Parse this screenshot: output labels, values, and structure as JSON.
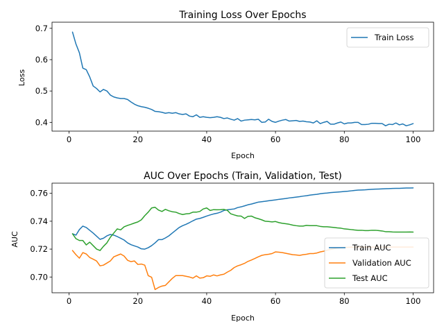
{
  "chart_data": [
    {
      "type": "line",
      "title": "Training Loss Over Epochs",
      "xlabel": "Epoch",
      "ylabel": "Loss",
      "xlim": [
        -4.95,
        105.95
      ],
      "ylim": [
        0.372,
        0.7195
      ],
      "xticks": [
        0,
        20,
        40,
        60,
        80,
        100
      ],
      "yticks": [
        0.4,
        0.5,
        0.6,
        0.7
      ],
      "grid": false,
      "legend_position": "top-right",
      "series": [
        {
          "name": "Train Loss",
          "color": "#1f77b4",
          "x": [
            1,
            2,
            3,
            4,
            5,
            6,
            7,
            8,
            9,
            10,
            11,
            12,
            13,
            14,
            15,
            16,
            17,
            18,
            19,
            20,
            21,
            22,
            23,
            24,
            25,
            26,
            27,
            28,
            29,
            30,
            31,
            32,
            33,
            34,
            35,
            36,
            37,
            38,
            39,
            40,
            41,
            42,
            43,
            44,
            45,
            46,
            47,
            48,
            49,
            50,
            51,
            52,
            53,
            54,
            55,
            56,
            57,
            58,
            59,
            60,
            61,
            62,
            63,
            64,
            65,
            66,
            67,
            68,
            69,
            70,
            71,
            72,
            73,
            74,
            75,
            76,
            77,
            78,
            79,
            80,
            81,
            82,
            83,
            84,
            85,
            86,
            87,
            88,
            89,
            90,
            91,
            92,
            93,
            94,
            95,
            96,
            97,
            98,
            99,
            100
          ],
          "y": [
            0.688,
            0.65,
            0.622,
            0.573,
            0.568,
            0.545,
            0.516,
            0.508,
            0.497,
            0.505,
            0.5,
            0.487,
            0.481,
            0.478,
            0.476,
            0.476,
            0.473,
            0.465,
            0.458,
            0.453,
            0.45,
            0.448,
            0.445,
            0.441,
            0.435,
            0.434,
            0.432,
            0.429,
            0.431,
            0.429,
            0.431,
            0.427,
            0.425,
            0.427,
            0.42,
            0.418,
            0.424,
            0.416,
            0.418,
            0.416,
            0.415,
            0.416,
            0.418,
            0.416,
            0.412,
            0.414,
            0.41,
            0.407,
            0.412,
            0.404,
            0.407,
            0.408,
            0.409,
            0.408,
            0.41,
            0.4,
            0.401,
            0.41,
            0.403,
            0.4,
            0.404,
            0.407,
            0.409,
            0.404,
            0.405,
            0.406,
            0.403,
            0.404,
            0.402,
            0.401,
            0.398,
            0.405,
            0.396,
            0.4,
            0.403,
            0.394,
            0.394,
            0.398,
            0.401,
            0.395,
            0.398,
            0.398,
            0.4,
            0.4,
            0.393,
            0.393,
            0.394,
            0.397,
            0.397,
            0.396,
            0.396,
            0.389,
            0.394,
            0.393,
            0.398,
            0.392,
            0.395,
            0.389,
            0.392,
            0.396
          ]
        }
      ]
    },
    {
      "type": "line",
      "title": "AUC Over Epochs (Train, Validation, Test)",
      "xlabel": "Epoch",
      "ylabel": "AUC",
      "xlim": [
        -4.95,
        105.95
      ],
      "ylim": [
        0.6887,
        0.7673
      ],
      "xticks": [
        0,
        20,
        40,
        60,
        80,
        100
      ],
      "yticks": [
        0.7,
        0.72,
        0.74,
        0.76
      ],
      "grid": false,
      "legend_position": "lower-right",
      "series": [
        {
          "name": "Train AUC",
          "color": "#1f77b4",
          "x": [
            1,
            2,
            3,
            4,
            5,
            6,
            7,
            8,
            9,
            10,
            11,
            12,
            13,
            14,
            15,
            16,
            17,
            18,
            19,
            20,
            21,
            22,
            23,
            24,
            25,
            26,
            27,
            28,
            29,
            30,
            31,
            32,
            33,
            34,
            35,
            36,
            37,
            38,
            39,
            40,
            41,
            42,
            43,
            44,
            45,
            46,
            47,
            48,
            49,
            50,
            51,
            52,
            53,
            54,
            55,
            56,
            57,
            58,
            59,
            60,
            61,
            62,
            63,
            64,
            65,
            66,
            67,
            68,
            69,
            70,
            71,
            72,
            73,
            74,
            75,
            76,
            77,
            78,
            79,
            80,
            81,
            82,
            83,
            84,
            85,
            86,
            87,
            88,
            89,
            90,
            91,
            92,
            93,
            94,
            95,
            96,
            97,
            98,
            99,
            100
          ],
          "y": [
            0.731,
            0.73,
            0.734,
            0.7365,
            0.7355,
            0.7335,
            0.7315,
            0.7293,
            0.727,
            0.7278,
            0.7295,
            0.7305,
            0.73,
            0.729,
            0.7278,
            0.7265,
            0.7245,
            0.7232,
            0.7223,
            0.7215,
            0.7202,
            0.72,
            0.721,
            0.7225,
            0.7245,
            0.7268,
            0.7268,
            0.728,
            0.7295,
            0.7315,
            0.7335,
            0.7355,
            0.7368,
            0.7378,
            0.739,
            0.7403,
            0.7415,
            0.742,
            0.7428,
            0.7437,
            0.7445,
            0.7452,
            0.7457,
            0.7465,
            0.7477,
            0.7482,
            0.7485,
            0.7488,
            0.7498,
            0.7503,
            0.751,
            0.7518,
            0.7523,
            0.753,
            0.7537,
            0.754,
            0.7543,
            0.7547,
            0.755,
            0.7553,
            0.7557,
            0.756,
            0.7563,
            0.7567,
            0.757,
            0.7573,
            0.7576,
            0.758,
            0.7583,
            0.7587,
            0.759,
            0.7593,
            0.7597,
            0.76,
            0.7602,
            0.7605,
            0.7607,
            0.7609,
            0.7611,
            0.7613,
            0.7615,
            0.7618,
            0.7621,
            0.7623,
            0.7624,
            0.7625,
            0.7627,
            0.7629,
            0.763,
            0.7631,
            0.7632,
            0.7633,
            0.7634,
            0.7635,
            0.7636,
            0.7636,
            0.7637,
            0.7638,
            0.7638,
            0.7639
          ]
        },
        {
          "name": "Validation AUC",
          "color": "#ff7f0e",
          "x": [
            1,
            2,
            3,
            4,
            5,
            6,
            7,
            8,
            9,
            10,
            11,
            12,
            13,
            14,
            15,
            16,
            17,
            18,
            19,
            20,
            21,
            22,
            23,
            24,
            25,
            26,
            27,
            28,
            29,
            30,
            31,
            32,
            33,
            34,
            35,
            36,
            37,
            38,
            39,
            40,
            41,
            42,
            43,
            44,
            45,
            46,
            47,
            48,
            49,
            50,
            51,
            52,
            53,
            54,
            55,
            56,
            57,
            58,
            59,
            60,
            61,
            62,
            63,
            64,
            65,
            66,
            67,
            68,
            69,
            70,
            71,
            72,
            73,
            74,
            75,
            76,
            77,
            78,
            79,
            80,
            81,
            82,
            83,
            84,
            85,
            86,
            87,
            88,
            89,
            90,
            91,
            92,
            93,
            94,
            95,
            96,
            97,
            98,
            99,
            100
          ],
          "y": [
            0.719,
            0.716,
            0.7135,
            0.7175,
            0.7165,
            0.714,
            0.7128,
            0.7115,
            0.708,
            0.7085,
            0.71,
            0.7115,
            0.7145,
            0.7155,
            0.7165,
            0.715,
            0.712,
            0.711,
            0.7115,
            0.709,
            0.7093,
            0.7085,
            0.701,
            0.6998,
            0.691,
            0.6925,
            0.6935,
            0.694,
            0.6965,
            0.699,
            0.701,
            0.701,
            0.701,
            0.7005,
            0.7,
            0.6992,
            0.7008,
            0.6992,
            0.6995,
            0.7008,
            0.7005,
            0.7015,
            0.7008,
            0.7015,
            0.702,
            0.7035,
            0.7048,
            0.7068,
            0.708,
            0.7088,
            0.7098,
            0.7112,
            0.7122,
            0.7133,
            0.7145,
            0.7155,
            0.716,
            0.7163,
            0.7168,
            0.718,
            0.7178,
            0.7175,
            0.717,
            0.7165,
            0.716,
            0.7158,
            0.7155,
            0.716,
            0.7163,
            0.7168,
            0.7168,
            0.7172,
            0.718,
            0.7185,
            0.7192,
            0.7198,
            0.7203,
            0.7207,
            0.721,
            0.7212,
            0.7213,
            0.7214,
            0.7215,
            0.7215,
            0.7215,
            0.7215,
            0.7215,
            0.7215,
            0.7215,
            0.7215,
            0.7215,
            0.7215,
            0.7215,
            0.7215,
            0.7215,
            0.7215,
            0.7215,
            0.7215,
            0.7215,
            0.7215
          ]
        },
        {
          "name": "Test AUC",
          "color": "#2ca02c",
          "x": [
            1,
            2,
            3,
            4,
            5,
            6,
            7,
            8,
            9,
            10,
            11,
            12,
            13,
            14,
            15,
            16,
            17,
            18,
            19,
            20,
            21,
            22,
            23,
            24,
            25,
            26,
            27,
            28,
            29,
            30,
            31,
            32,
            33,
            34,
            35,
            36,
            37,
            38,
            39,
            40,
            41,
            42,
            43,
            44,
            45,
            46,
            47,
            48,
            49,
            50,
            51,
            52,
            53,
            54,
            55,
            56,
            57,
            58,
            59,
            60,
            61,
            62,
            63,
            64,
            65,
            66,
            67,
            68,
            69,
            70,
            71,
            72,
            73,
            74,
            75,
            76,
            77,
            78,
            79,
            80,
            81,
            82,
            83,
            84,
            85,
            86,
            87,
            88,
            89,
            90,
            91,
            92,
            93,
            94,
            95,
            96,
            97,
            98,
            99,
            100
          ],
          "y": [
            0.731,
            0.7275,
            0.7262,
            0.7262,
            0.723,
            0.725,
            0.7225,
            0.72,
            0.719,
            0.722,
            0.7245,
            0.7285,
            0.7315,
            0.7345,
            0.7338,
            0.736,
            0.737,
            0.7378,
            0.7387,
            0.7395,
            0.741,
            0.744,
            0.7465,
            0.7495,
            0.75,
            0.748,
            0.747,
            0.7485,
            0.7475,
            0.7468,
            0.7465,
            0.7455,
            0.7448,
            0.7453,
            0.7455,
            0.7465,
            0.7465,
            0.747,
            0.7488,
            0.7495,
            0.7477,
            0.7483,
            0.7482,
            0.7483,
            0.7485,
            0.7478,
            0.7453,
            0.7445,
            0.7438,
            0.7437,
            0.742,
            0.7435,
            0.7437,
            0.7425,
            0.7418,
            0.741,
            0.74,
            0.7398,
            0.7395,
            0.7398,
            0.739,
            0.7385,
            0.7382,
            0.7378,
            0.7372,
            0.7368,
            0.7365,
            0.7365,
            0.737,
            0.7368,
            0.7368,
            0.7368,
            0.7363,
            0.736,
            0.736,
            0.7358,
            0.7355,
            0.7352,
            0.735,
            0.7345,
            0.7343,
            0.734,
            0.7337,
            0.7335,
            0.7335,
            0.7333,
            0.7333,
            0.7335,
            0.7335,
            0.7333,
            0.733,
            0.7325,
            0.7325,
            0.7323,
            0.7322,
            0.7322,
            0.7322,
            0.7322,
            0.7323,
            0.7322
          ]
        }
      ]
    }
  ]
}
